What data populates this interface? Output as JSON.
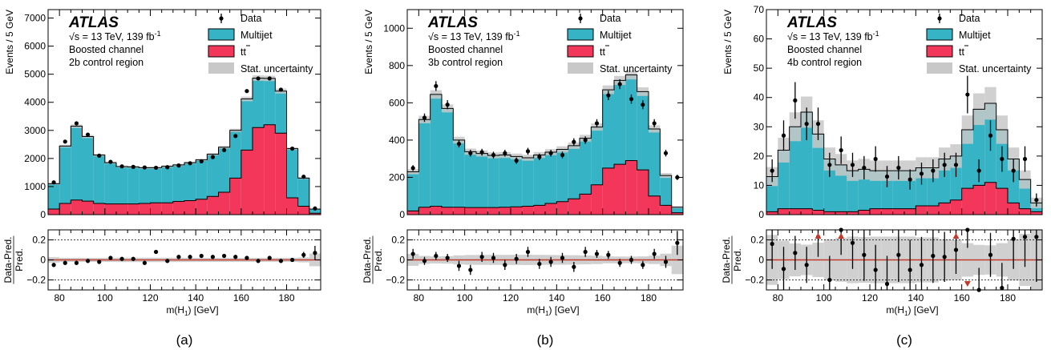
{
  "experiment": "ATLAS",
  "energy_lumi": "= 13 TeV, 139 fb",
  "sqrt_s": "√s",
  "lumi_exp": "-1",
  "channel": "Boosted channel",
  "legend": {
    "data": "Data",
    "multijet": "Multijet",
    "ttbar": "tt",
    "stat": "Stat. uncertainty"
  },
  "colors": {
    "multijet": "#36b3c4",
    "ttbar": "#f2375a",
    "stat": "#c8c8c8",
    "unity_line": "#c0392b",
    "outlier_arrow": "#c0392b"
  },
  "ylabel_main": "Events / 5 GeV",
  "ylabel_ratio_top": "Data-Pred.",
  "ylabel_ratio_bottom": "Pred.",
  "xlabel": "m(H",
  "xlabel_sub": "1",
  "xlabel_unit": ") [GeV]",
  "chart_data": [
    {
      "type": "histogram",
      "label": "(a)",
      "region": "2b control region",
      "bin_edges": [
        75,
        80,
        85,
        90,
        95,
        100,
        105,
        110,
        115,
        120,
        125,
        130,
        135,
        140,
        145,
        150,
        155,
        160,
        165,
        170,
        175,
        180,
        185,
        190,
        195
      ],
      "ylim": [
        0,
        7300
      ],
      "yticks": [
        0,
        1000,
        2000,
        3000,
        4000,
        5000,
        6000,
        7000
      ],
      "multijet": [
        900,
        2040,
        2630,
        2300,
        1720,
        1470,
        1330,
        1320,
        1270,
        1250,
        1300,
        1300,
        1350,
        1400,
        1500,
        1600,
        1700,
        1820,
        1760,
        1650,
        1500,
        1750,
        1000,
        150
      ],
      "ttbar": [
        200,
        400,
        520,
        480,
        400,
        380,
        380,
        380,
        400,
        420,
        420,
        470,
        500,
        550,
        650,
        800,
        1300,
        2300,
        3100,
        3200,
        2900,
        600,
        300,
        50
      ],
      "data": [
        1150,
        2600,
        3250,
        2850,
        2100,
        1880,
        1720,
        1700,
        1680,
        1670,
        1690,
        1750,
        1830,
        1900,
        2050,
        2300,
        2800,
        4400,
        4850,
        4850,
        4450,
        2350,
        1350,
        220
      ],
      "ratio": [
        -0.05,
        -0.03,
        -0.03,
        -0.01,
        -0.02,
        0.02,
        0.01,
        0.01,
        -0.03,
        0.08,
        -0.01,
        0.03,
        0.03,
        0.04,
        0.03,
        0.04,
        0.03,
        0.02,
        -0.01,
        0.02,
        -0.01,
        0.0,
        0.05,
        0.07
      ],
      "ratio_err": [
        0.02,
        0.02,
        0.02,
        0.02,
        0.02,
        0.02,
        0.02,
        0.02,
        0.02,
        0.02,
        0.02,
        0.02,
        0.02,
        0.02,
        0.02,
        0.02,
        0.02,
        0.02,
        0.02,
        0.02,
        0.02,
        0.02,
        0.03,
        0.07
      ]
    },
    {
      "type": "histogram",
      "label": "(b)",
      "region": "3b control region",
      "bin_edges": [
        75,
        80,
        85,
        90,
        95,
        100,
        105,
        110,
        115,
        120,
        125,
        130,
        135,
        140,
        145,
        150,
        155,
        160,
        165,
        170,
        175,
        180,
        185,
        190,
        195
      ],
      "ylim": [
        0,
        1100
      ],
      "yticks": [
        0,
        200,
        400,
        600,
        800,
        1000
      ],
      "multijet": [
        210,
        470,
        600,
        530,
        360,
        300,
        290,
        280,
        280,
        270,
        260,
        270,
        275,
        280,
        285,
        300,
        310,
        420,
        450,
        460,
        420,
        360,
        160,
        30
      ],
      "ttbar": [
        20,
        40,
        45,
        40,
        40,
        38,
        38,
        38,
        40,
        42,
        45,
        50,
        60,
        70,
        85,
        110,
        160,
        250,
        270,
        290,
        240,
        100,
        50,
        10
      ],
      "data": [
        250,
        520,
        690,
        590,
        380,
        330,
        335,
        320,
        330,
        290,
        340,
        310,
        330,
        320,
        390,
        400,
        490,
        640,
        700,
        620,
        590,
        490,
        330,
        200
      ],
      "ratio": [
        0.06,
        -0.01,
        0.04,
        0.02,
        -0.06,
        -0.1,
        0.03,
        0.02,
        -0.05,
        0.01,
        0.08,
        -0.04,
        -0.02,
        0.02,
        -0.07,
        0.08,
        0.06,
        0.05,
        -0.03,
        0.0,
        -0.05,
        0.06,
        -0.02,
        0.17
      ],
      "ratio_err": [
        0.05,
        0.04,
        0.04,
        0.04,
        0.05,
        0.05,
        0.05,
        0.05,
        0.05,
        0.05,
        0.05,
        0.05,
        0.05,
        0.05,
        0.05,
        0.05,
        0.04,
        0.04,
        0.04,
        0.04,
        0.04,
        0.05,
        0.06,
        0.12
      ]
    },
    {
      "type": "histogram",
      "label": "(c)",
      "region": "4b control region",
      "bin_edges": [
        75,
        80,
        85,
        90,
        95,
        100,
        105,
        110,
        115,
        120,
        125,
        130,
        135,
        140,
        145,
        150,
        155,
        160,
        165,
        170,
        175,
        180,
        185,
        190,
        195
      ],
      "ylim": [
        0,
        70
      ],
      "yticks": [
        0,
        10,
        20,
        30,
        40,
        50,
        60,
        70
      ],
      "multijet": [
        12,
        20,
        28,
        33,
        26,
        18,
        16,
        14,
        14,
        13,
        13,
        13,
        13,
        13,
        13,
        15,
        15,
        20,
        26,
        27,
        20,
        15,
        10,
        3
      ],
      "ttbar": [
        1,
        2,
        2,
        2,
        1.5,
        1,
        1,
        1,
        1.5,
        2,
        2,
        2,
        2,
        3,
        3,
        4,
        5,
        9,
        10,
        11,
        9,
        4,
        2,
        1
      ],
      "data": [
        15,
        27,
        39,
        31,
        31,
        17,
        22,
        17,
        16,
        19,
        13,
        16,
        12,
        14,
        15,
        17,
        17,
        41,
        15,
        27,
        19,
        15,
        19,
        5
      ],
      "ratio": [
        0.16,
        -0.09,
        0.07,
        -0.05,
        0.23,
        -0.2,
        0.3,
        0.17,
        0.05,
        -0.1,
        -0.24,
        0.05,
        -0.1,
        -0.05,
        0.04,
        0.03,
        0.1,
        0.3,
        -0.3,
        0.05,
        -0.28,
        0.21,
        0.23,
        0.23
      ],
      "ratio_err": [
        0.25,
        0.22,
        0.17,
        0.18,
        0.2,
        0.24,
        0.25,
        0.26,
        0.26,
        0.25,
        0.28,
        0.27,
        0.3,
        0.28,
        0.27,
        0.25,
        0.24,
        0.18,
        0.22,
        0.22,
        0.25,
        0.3,
        0.3,
        0.45
      ],
      "outliers_up_x": [
        97.5,
        107.5,
        157.5
      ],
      "outliers_down_x": [
        162.5
      ]
    }
  ],
  "xaxis": {
    "range": [
      75,
      195
    ],
    "ticks": [
      80,
      100,
      120,
      140,
      160,
      180
    ],
    "ratio_range": [
      -0.3,
      0.3
    ],
    "ratio_ticks": [
      -0.2,
      0,
      0.2
    ],
    "ratio_tick_labels": [
      "−0.2",
      "0",
      "0.2"
    ]
  }
}
